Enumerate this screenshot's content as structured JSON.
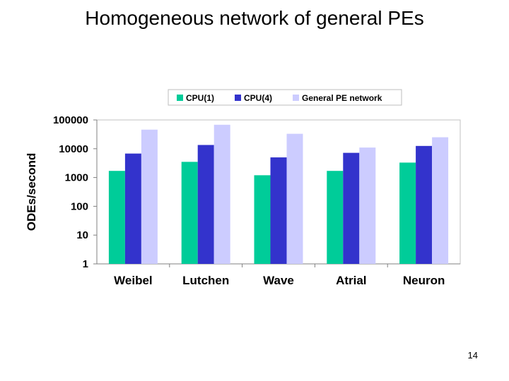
{
  "slide": {
    "title": "Homogeneous network of general PEs",
    "page_number": "14"
  },
  "chart_data": {
    "type": "bar",
    "title": "",
    "xlabel": "",
    "ylabel": "ODEs/second",
    "yscale": "log",
    "ylim": [
      1,
      100000
    ],
    "yticks": [
      1,
      10,
      100,
      1000,
      10000,
      100000
    ],
    "ytick_labels": [
      "1",
      "10",
      "100",
      "1000",
      "10000",
      "100000"
    ],
    "grid": false,
    "legend_position": "top",
    "categories": [
      "Weibel",
      "Lutchen",
      "Wave",
      "Atrial",
      "Neuron"
    ],
    "series": [
      {
        "name": "CPU(1)",
        "color": "#00cc99",
        "values": [
          1700,
          3500,
          1200,
          1700,
          3300
        ]
      },
      {
        "name": "CPU(4)",
        "color": "#3333cc",
        "values": [
          6800,
          13500,
          5000,
          7200,
          12500
        ]
      },
      {
        "name": "General PE network",
        "color": "#ccccff",
        "values": [
          46000,
          68000,
          33000,
          11000,
          25000
        ]
      }
    ]
  }
}
